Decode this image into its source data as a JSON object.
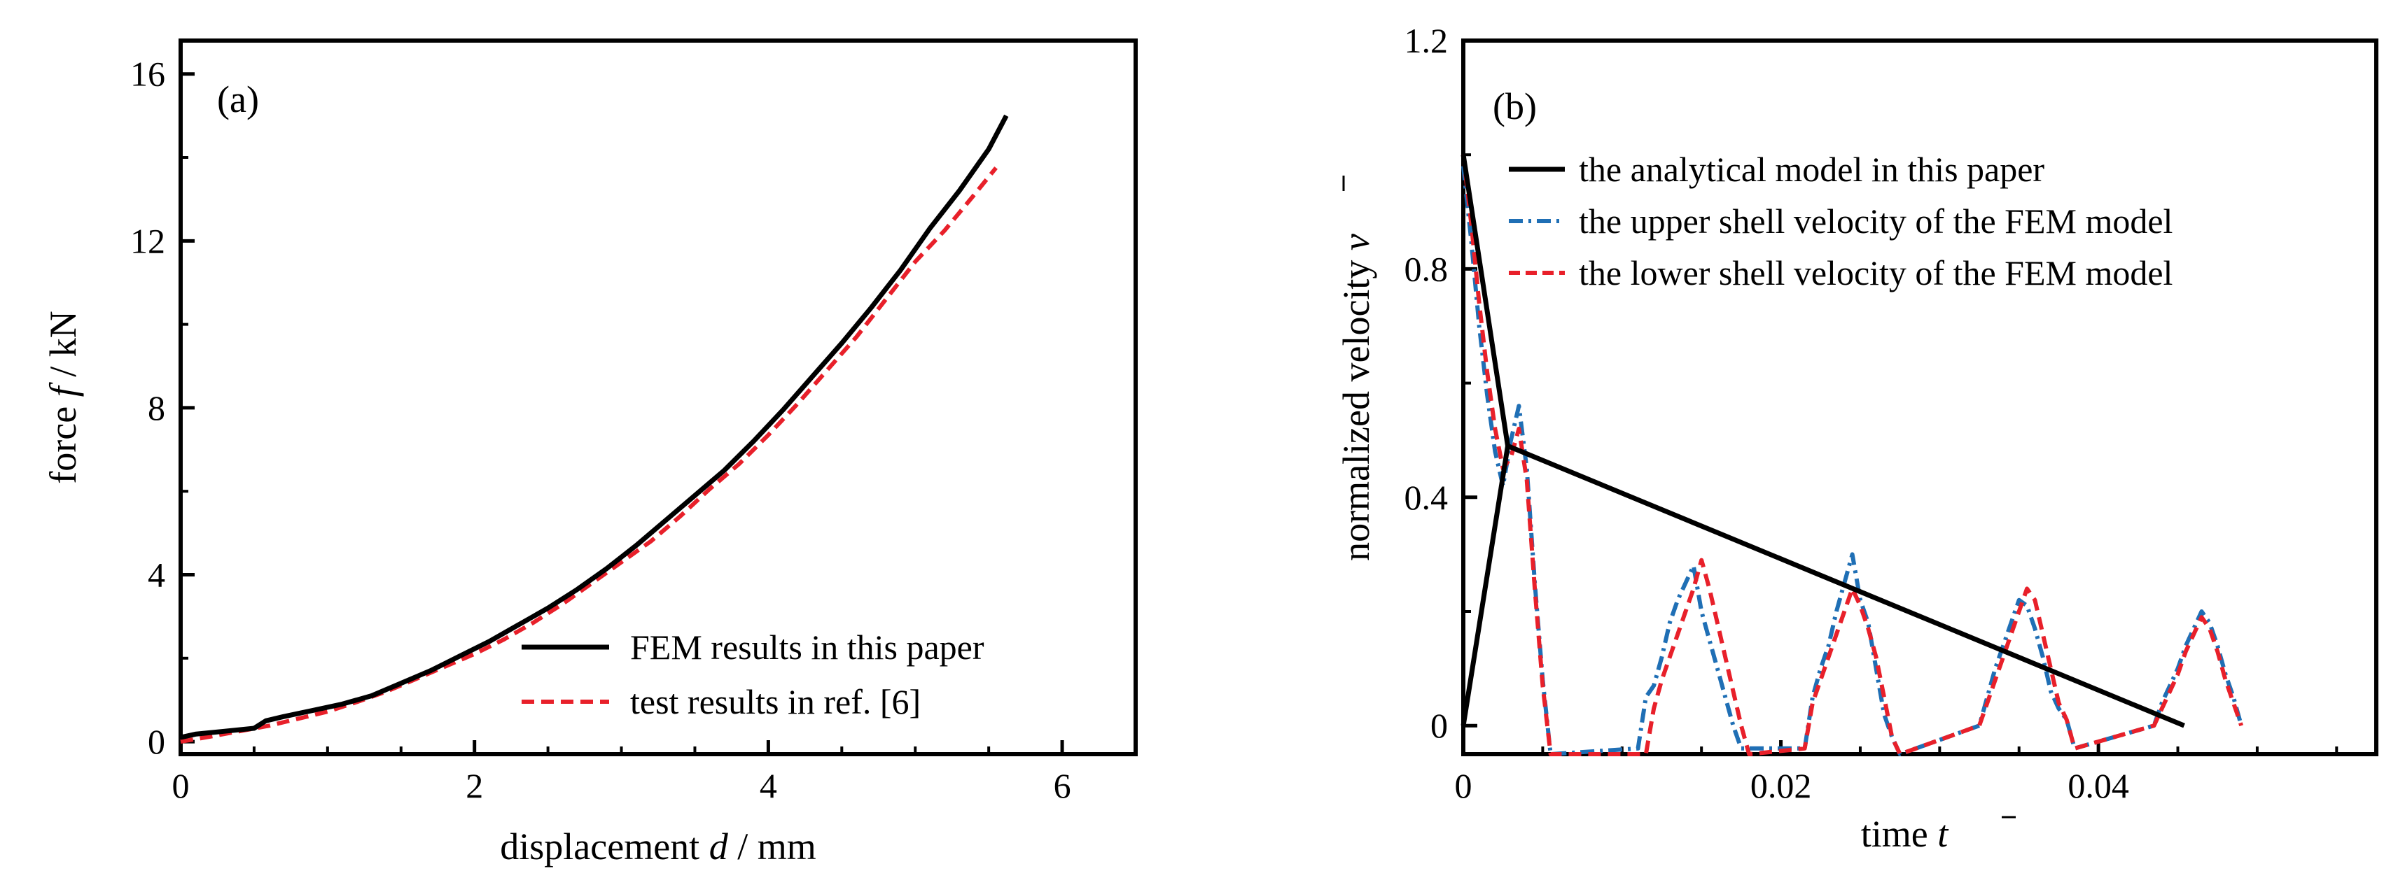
{
  "chart_data": [
    {
      "type": "line",
      "panel": "(a)",
      "xlabel": "displacement",
      "xlabel_var": "d",
      "xlabel_unit": "/ mm",
      "ylabel": "force",
      "ylabel_var": "f",
      "ylabel_unit": "/ kN",
      "xlim": [
        0,
        6.5
      ],
      "ylim": [
        -0.3,
        16.8
      ],
      "xticks": [
        "0",
        "2",
        "4",
        "6"
      ],
      "xtick_values": [
        0,
        2,
        4,
        6
      ],
      "yticks": [
        "0",
        "4",
        "8",
        "12",
        "16"
      ],
      "ytick_values": [
        0,
        4,
        8,
        12,
        16
      ],
      "legend_position": "bottom-right",
      "series": [
        {
          "name": "FEM results in this paper",
          "color": "#000000",
          "style": "solid",
          "x": [
            0,
            0.1,
            0.3,
            0.5,
            0.58,
            0.7,
            0.9,
            1.1,
            1.3,
            1.5,
            1.7,
            1.9,
            2.1,
            2.3,
            2.5,
            2.7,
            2.9,
            3.1,
            3.3,
            3.5,
            3.7,
            3.9,
            4.1,
            4.3,
            4.5,
            4.7,
            4.9,
            5.1,
            5.3,
            5.5,
            5.62
          ],
          "y": [
            0.1,
            0.18,
            0.25,
            0.32,
            0.5,
            0.6,
            0.75,
            0.9,
            1.1,
            1.4,
            1.7,
            2.05,
            2.4,
            2.8,
            3.2,
            3.65,
            4.15,
            4.7,
            5.3,
            5.9,
            6.5,
            7.2,
            7.95,
            8.75,
            9.55,
            10.4,
            11.3,
            12.3,
            13.2,
            14.2,
            15.0
          ]
        },
        {
          "name": "test results in ref. [6]",
          "color": "#e8202a",
          "style": "dashed",
          "x": [
            0,
            0.2,
            0.4,
            0.6,
            0.8,
            1.0,
            1.2,
            1.4,
            1.6,
            1.8,
            2.0,
            2.2,
            2.4,
            2.6,
            2.8,
            3.0,
            3.2,
            3.4,
            3.6,
            3.8,
            4.0,
            4.2,
            4.4,
            4.6,
            4.8,
            5.0,
            5.2,
            5.4,
            5.55
          ],
          "y": [
            0.0,
            0.12,
            0.25,
            0.38,
            0.55,
            0.72,
            0.95,
            1.2,
            1.5,
            1.8,
            2.1,
            2.45,
            2.85,
            3.3,
            3.8,
            4.3,
            4.8,
            5.4,
            6.05,
            6.65,
            7.35,
            8.1,
            8.9,
            9.7,
            10.6,
            11.5,
            12.25,
            13.1,
            13.75
          ]
        }
      ]
    },
    {
      "type": "line",
      "panel": "(b)",
      "xlabel": "time",
      "xlabel_var": "t",
      "ylabel": "normalized velocity",
      "ylabel_var": "v",
      "xlim": [
        0,
        0.0575
      ],
      "ylim": [
        -0.05,
        1.2
      ],
      "xticks": [
        "0",
        "0.02",
        "0.04"
      ],
      "xtick_values": [
        0,
        0.02,
        0.04
      ],
      "yticks": [
        "0",
        "0.4",
        "0.8",
        "1.2"
      ],
      "ytick_values": [
        0,
        0.4,
        0.8,
        1.2
      ],
      "legend_position": "top-right",
      "series": [
        {
          "name": "the analytical model in this paper",
          "color": "#000000",
          "style": "solid",
          "x": [
            0,
            0.0028,
            0.0454
          ],
          "y": [
            1.0,
            0.49,
            0.0
          ]
        },
        {
          "name": "the analytical model in this paper (rising branch)",
          "color": "#000000",
          "style": "solid",
          "legend_hidden": true,
          "x": [
            0,
            0.0028
          ],
          "y": [
            0.0,
            0.49
          ]
        },
        {
          "name": "the upper shell velocity of the FEM model",
          "color": "#1f6fb5",
          "style": "dashdot",
          "x": [
            0,
            0.0005,
            0.001,
            0.0015,
            0.002,
            0.0025,
            0.003,
            0.0035,
            0.004,
            0.0045,
            0.005,
            0.0055,
            0.011,
            0.0115,
            0.012,
            0.0125,
            0.013,
            0.0135,
            0.014,
            0.0145,
            0.015,
            0.0155,
            0.016,
            0.0165,
            0.017,
            0.0175,
            0.0215,
            0.022,
            0.0225,
            0.023,
            0.0235,
            0.024,
            0.0245,
            0.025,
            0.0255,
            0.026,
            0.0265,
            0.027,
            0.0275,
            0.0325,
            0.033,
            0.0335,
            0.034,
            0.0345,
            0.035,
            0.0355,
            0.036,
            0.0365,
            0.037,
            0.0375,
            0.038,
            0.0385,
            0.0435,
            0.044,
            0.0445,
            0.045,
            0.0455,
            0.046,
            0.0465,
            0.047,
            0.0475,
            0.048,
            0.0485,
            0.049
          ],
          "y": [
            0.98,
            0.85,
            0.7,
            0.58,
            0.48,
            0.42,
            0.5,
            0.56,
            0.45,
            0.25,
            0.08,
            -0.05,
            -0.04,
            0.05,
            0.07,
            0.12,
            0.18,
            0.22,
            0.25,
            0.28,
            0.2,
            0.15,
            0.1,
            0.05,
            0.0,
            -0.04,
            -0.04,
            0.05,
            0.1,
            0.14,
            0.2,
            0.25,
            0.3,
            0.22,
            0.18,
            0.1,
            0.02,
            -0.02,
            -0.05,
            0.0,
            0.05,
            0.1,
            0.14,
            0.18,
            0.22,
            0.21,
            0.17,
            0.12,
            0.06,
            0.03,
            0.01,
            -0.04,
            0.0,
            0.04,
            0.07,
            0.1,
            0.14,
            0.17,
            0.2,
            0.18,
            0.14,
            0.09,
            0.05,
            0.0
          ]
        },
        {
          "name": "the lower shell velocity of the FEM model",
          "color": "#e8202a",
          "style": "dashed",
          "x": [
            0,
            0.0005,
            0.001,
            0.0015,
            0.002,
            0.0025,
            0.003,
            0.0035,
            0.004,
            0.0045,
            0.005,
            0.0055,
            0.0115,
            0.012,
            0.0125,
            0.013,
            0.0135,
            0.014,
            0.0145,
            0.015,
            0.0155,
            0.016,
            0.0165,
            0.017,
            0.0175,
            0.018,
            0.0215,
            0.022,
            0.0225,
            0.023,
            0.0235,
            0.024,
            0.0245,
            0.025,
            0.0255,
            0.026,
            0.0265,
            0.027,
            0.0275,
            0.0325,
            0.033,
            0.0335,
            0.034,
            0.0345,
            0.035,
            0.0355,
            0.036,
            0.0365,
            0.037,
            0.0375,
            0.038,
            0.0385,
            0.0435,
            0.044,
            0.0445,
            0.045,
            0.0455,
            0.046,
            0.0465,
            0.047,
            0.0475,
            0.048,
            0.0485,
            0.049
          ],
          "y": [
            1.0,
            0.88,
            0.74,
            0.62,
            0.52,
            0.45,
            0.47,
            0.52,
            0.43,
            0.24,
            0.07,
            -0.05,
            -0.05,
            0.03,
            0.08,
            0.12,
            0.16,
            0.2,
            0.24,
            0.29,
            0.24,
            0.18,
            0.12,
            0.06,
            0.0,
            -0.05,
            -0.04,
            0.04,
            0.08,
            0.12,
            0.16,
            0.2,
            0.24,
            0.21,
            0.17,
            0.12,
            0.05,
            -0.02,
            -0.05,
            0.0,
            0.04,
            0.08,
            0.12,
            0.16,
            0.2,
            0.24,
            0.22,
            0.16,
            0.1,
            0.04,
            0.01,
            -0.04,
            0.0,
            0.03,
            0.06,
            0.09,
            0.13,
            0.16,
            0.19,
            0.17,
            0.13,
            0.08,
            0.04,
            0.0
          ]
        }
      ]
    }
  ]
}
